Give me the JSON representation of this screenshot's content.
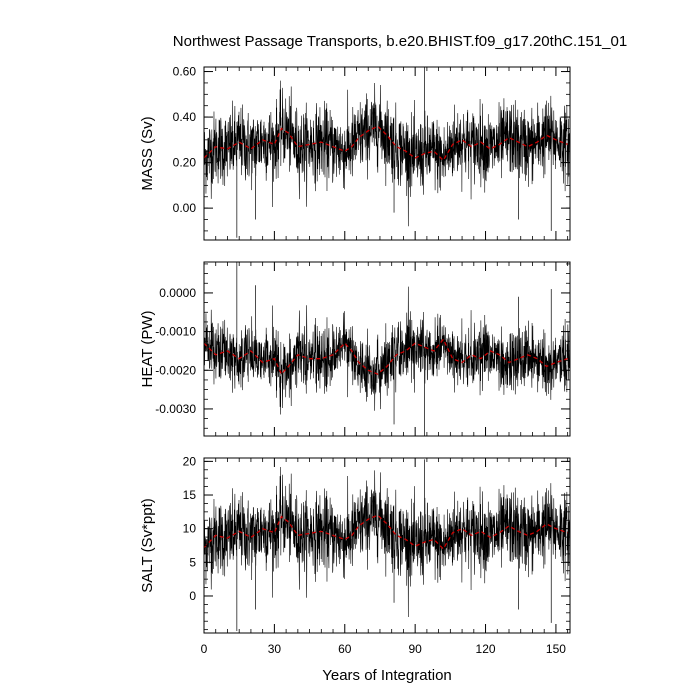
{
  "chart_data": {
    "type": "line",
    "title": "Northwest Passage Transports, b.e20.BHIST.f09_g17.20thC.151_01",
    "xlabel": "Years of Integration",
    "xlim": [
      0,
      156
    ],
    "x_ticks": [
      0,
      30,
      60,
      90,
      120,
      150
    ],
    "x_tick_labels": [
      "0",
      "30",
      "60",
      "90",
      "120",
      "150"
    ],
    "series_colors": {
      "monthly": "#000000",
      "smoothed": "#cc0000"
    },
    "panels": [
      {
        "ylabel": "MASS (Sv)",
        "ylim": [
          -0.14,
          0.62
        ],
        "y_ticks": [
          0.0,
          0.2,
          0.4,
          0.6
        ],
        "y_tick_labels": [
          "0.00",
          "0.20",
          "0.40",
          "0.60"
        ],
        "mean": 0.27,
        "amp": 0.08,
        "smooth_x": [
          0,
          5,
          10,
          15,
          20,
          25,
          30,
          33,
          36,
          40,
          45,
          50,
          55,
          60,
          63,
          66,
          70,
          74,
          78,
          82,
          86,
          90,
          94,
          98,
          102,
          106,
          110,
          114,
          118,
          122,
          126,
          130,
          134,
          138,
          142,
          146,
          150,
          155
        ],
        "smooth_y": [
          0.22,
          0.27,
          0.26,
          0.29,
          0.26,
          0.3,
          0.28,
          0.35,
          0.33,
          0.27,
          0.28,
          0.29,
          0.27,
          0.25,
          0.27,
          0.31,
          0.34,
          0.36,
          0.32,
          0.27,
          0.25,
          0.22,
          0.24,
          0.25,
          0.21,
          0.28,
          0.3,
          0.27,
          0.29,
          0.26,
          0.28,
          0.31,
          0.29,
          0.27,
          0.29,
          0.32,
          0.3,
          0.28
        ],
        "spikes": [
          [
            14,
            -0.13
          ],
          [
            22,
            -0.05
          ],
          [
            94,
            0.62
          ],
          [
            148,
            -0.1
          ],
          [
            134,
            -0.05
          ],
          [
            81,
            -0.02
          ]
        ]
      },
      {
        "ylabel": "HEAT (PW)",
        "ylim": [
          -0.0037,
          0.0008
        ],
        "y_ticks": [
          -0.003,
          -0.002,
          -0.001,
          0.0
        ],
        "y_tick_labels": [
          "-0.0030",
          "-0.0020",
          "-0.0010",
          "0.0000"
        ],
        "mean": -0.0017,
        "amp": 0.0004,
        "smooth_x": [
          0,
          5,
          10,
          15,
          20,
          25,
          30,
          33,
          36,
          40,
          45,
          50,
          55,
          60,
          63,
          66,
          70,
          74,
          78,
          82,
          86,
          90,
          94,
          98,
          102,
          106,
          110,
          114,
          118,
          122,
          126,
          130,
          134,
          138,
          142,
          146,
          150,
          155
        ],
        "smooth_y": [
          -0.0013,
          -0.0016,
          -0.0015,
          -0.0017,
          -0.0015,
          -0.0018,
          -0.0017,
          -0.0021,
          -0.0019,
          -0.0016,
          -0.0017,
          -0.0017,
          -0.0016,
          -0.0013,
          -0.0015,
          -0.0018,
          -0.002,
          -0.0021,
          -0.0019,
          -0.0016,
          -0.0015,
          -0.0013,
          -0.0014,
          -0.0015,
          -0.0012,
          -0.0017,
          -0.0018,
          -0.0016,
          -0.0017,
          -0.0015,
          -0.0016,
          -0.0018,
          -0.0017,
          -0.0016,
          -0.0017,
          -0.0019,
          -0.0018,
          -0.0017
        ],
        "spikes": [
          [
            14,
            0.0008
          ],
          [
            22,
            0.0002
          ],
          [
            94,
            -0.0037
          ],
          [
            148,
            0.0001
          ],
          [
            134,
            -0.0001
          ],
          [
            81,
            -0.0034
          ]
        ]
      },
      {
        "ylabel": "SALT (Sv*ppt)",
        "ylim": [
          -5.5,
          20.5
        ],
        "y_ticks": [
          0,
          5,
          10,
          15,
          20
        ],
        "y_tick_labels": [
          "0",
          "5",
          "10",
          "15",
          "20"
        ],
        "mean": 9.0,
        "amp": 2.8,
        "smooth_x": [
          0,
          5,
          10,
          15,
          20,
          25,
          30,
          33,
          36,
          40,
          45,
          50,
          55,
          60,
          63,
          66,
          70,
          74,
          78,
          82,
          86,
          90,
          94,
          98,
          102,
          106,
          110,
          114,
          118,
          122,
          126,
          130,
          134,
          138,
          142,
          146,
          150,
          155
        ],
        "smooth_y": [
          7.2,
          9.0,
          8.6,
          9.6,
          8.7,
          10.0,
          9.4,
          11.8,
          11.0,
          9.0,
          9.3,
          9.6,
          9.0,
          8.4,
          9.0,
          10.4,
          11.4,
          12.0,
          10.7,
          9.0,
          8.4,
          7.4,
          8.0,
          8.4,
          7.0,
          9.4,
          10.0,
          9.0,
          9.6,
          8.7,
          9.4,
          10.4,
          9.6,
          9.0,
          9.6,
          10.7,
          10.0,
          9.4
        ],
        "spikes": [
          [
            14,
            -5.2
          ],
          [
            22,
            -2.0
          ],
          [
            94,
            20.3
          ],
          [
            148,
            -4.0
          ],
          [
            134,
            -2.0
          ],
          [
            81,
            -1.0
          ]
        ]
      }
    ]
  }
}
